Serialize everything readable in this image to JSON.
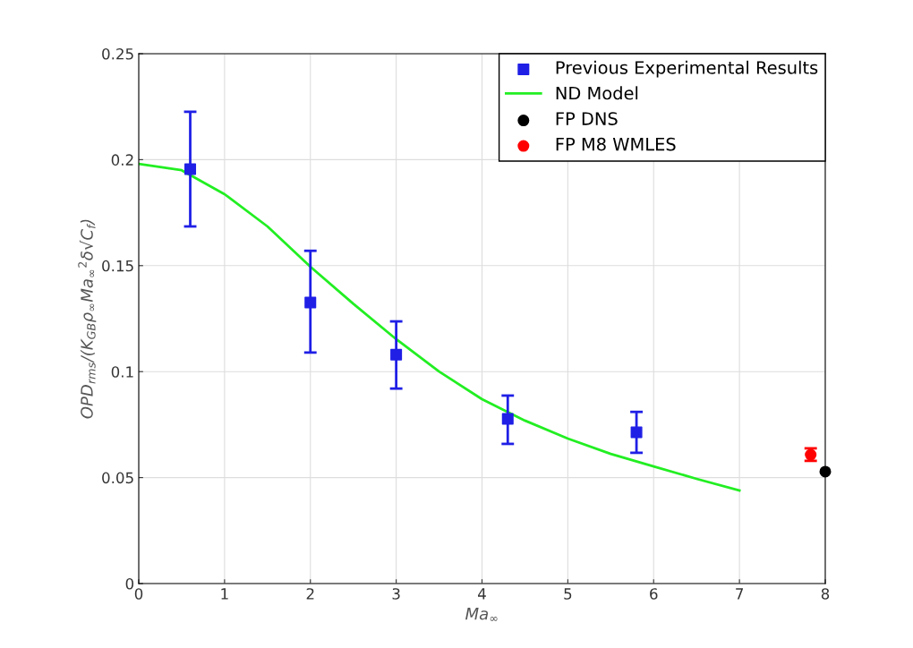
{
  "chart_data": {
    "type": "scatter",
    "xlabel": "Ma$_{∞}$",
    "ylabel": "OPD$_{rms}$/(K$_{GB}$ρ$_{∞}$Ma$_{∞}$$^{2}$δ√C$_{f}$)",
    "xlim": [
      0,
      8
    ],
    "ylim": [
      0,
      0.25
    ],
    "xticks": [
      0,
      1,
      2,
      3,
      4,
      5,
      6,
      7,
      8
    ],
    "yticks": [
      0,
      0.05,
      0.1,
      0.15,
      0.2,
      0.25
    ],
    "grid": true,
    "legend": "top right",
    "series": [
      {
        "name": "Previous Experimental Results",
        "marker": "square",
        "color": "#1f1fe6",
        "x": [
          0.6,
          2,
          3,
          4.3,
          5.8
        ],
        "values": [
          0.1955,
          0.1326,
          0.108,
          0.0777,
          0.0714
        ],
        "errors": [
          [
            0.1685,
            0.2226
          ],
          [
            0.109,
            0.157
          ],
          [
            0.092,
            0.1237
          ],
          [
            0.0659,
            0.0887
          ],
          [
            0.0617,
            0.081
          ]
        ]
      },
      {
        "name": "ND Model",
        "type": "line",
        "marker": "none",
        "color": "#22ee22",
        "x": [
          0,
          0.5,
          1,
          1.5,
          2,
          2.5,
          3,
          3.5,
          4,
          4.5,
          5,
          5.5,
          6,
          6.5,
          7
        ],
        "values": [
          0.198,
          0.195,
          0.1837,
          0.1685,
          0.1495,
          0.132,
          0.1153,
          0.1,
          0.087,
          0.0769,
          0.0684,
          0.0612,
          0.0553,
          0.0494,
          0.0439
        ]
      },
      {
        "name": "FP DNS",
        "marker": "circle",
        "color": "#000000",
        "x": [
          8
        ],
        "values": [
          0.0528
        ]
      },
      {
        "name": "FP M8 WMLES",
        "marker": "circle",
        "color": "#ff0000",
        "x": [
          7.83
        ],
        "values": [
          0.0608
        ],
        "errors": [
          [
            0.0579,
            0.0638
          ]
        ]
      }
    ]
  }
}
